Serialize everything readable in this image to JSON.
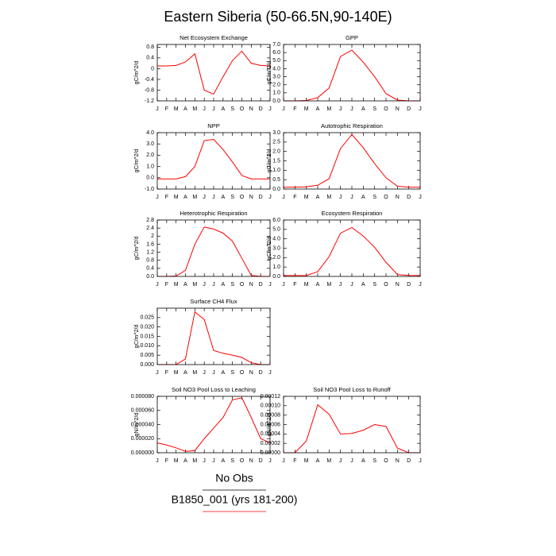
{
  "title": "Eastern Siberia (50-66.5N,90-140E)",
  "legend": [
    {
      "name": "No Obs",
      "color": "#000000"
    },
    {
      "name": "B1850_001 (yrs 181-200)",
      "color": "#ff0000"
    }
  ],
  "chart_data": [
    {
      "type": "line",
      "title": "Net Ecosystem Exchange",
      "ylabel": "gC/m^2/d",
      "color": "#ff0000",
      "categories": [
        "J",
        "F",
        "M",
        "A",
        "M",
        "J",
        "J",
        "A",
        "S",
        "O",
        "N",
        "D",
        "J"
      ],
      "values": [
        0.1,
        0.1,
        0.12,
        0.25,
        0.55,
        -0.8,
        -0.95,
        -0.3,
        0.3,
        0.65,
        0.2,
        0.12,
        0.1
      ],
      "ylim": [
        -1.2,
        0.9
      ],
      "yticks": [
        -1.2,
        -0.8,
        -0.4,
        0,
        0.4,
        0.8
      ]
    },
    {
      "type": "line",
      "title": "GPP",
      "ylabel": "gC/m^2/d",
      "color": "#ff0000",
      "categories": [
        "J",
        "F",
        "M",
        "A",
        "M",
        "J",
        "J",
        "A",
        "S",
        "O",
        "N",
        "D",
        "J"
      ],
      "values": [
        0,
        0,
        0.05,
        0.4,
        1.6,
        5.5,
        6.3,
        4.8,
        3.0,
        0.9,
        0.1,
        0,
        0
      ],
      "ylim": [
        0,
        7
      ],
      "yticks": [
        {
          "value": 0,
          "label": "0.0"
        },
        {
          "value": 1,
          "label": "1.0"
        },
        {
          "value": 2,
          "label": "2.0"
        },
        {
          "value": 3,
          "label": "3.0"
        },
        {
          "value": 4,
          "label": "4.0"
        },
        {
          "value": 5,
          "label": "5.0"
        },
        {
          "value": 6,
          "label": "6.0"
        },
        {
          "value": 7,
          "label": "7.0"
        }
      ]
    },
    {
      "type": "line",
      "title": "NPP",
      "ylabel": "gC/m^2/d",
      "color": "#ff0000",
      "categories": [
        "J",
        "F",
        "M",
        "A",
        "M",
        "J",
        "J",
        "A",
        "S",
        "O",
        "N",
        "D",
        "J"
      ],
      "values": [
        -0.1,
        -0.1,
        -0.1,
        0.1,
        1.0,
        3.3,
        3.4,
        2.5,
        1.4,
        0.2,
        -0.1,
        -0.1,
        -0.1
      ],
      "ylim": [
        -1,
        4
      ],
      "yticks": [
        {
          "value": -1,
          "label": "-1.0"
        },
        {
          "value": 0,
          "label": "0.0"
        },
        {
          "value": 1,
          "label": "1.0"
        },
        {
          "value": 2,
          "label": "2.0"
        },
        {
          "value": 3,
          "label": "3.0"
        },
        {
          "value": 4,
          "label": "4.0"
        }
      ]
    },
    {
      "type": "line",
      "title": "Autotrophic Respiration",
      "ylabel": "gC/m^2/d",
      "color": "#ff0000",
      "categories": [
        "J",
        "F",
        "M",
        "A",
        "M",
        "J",
        "J",
        "A",
        "S",
        "O",
        "N",
        "D",
        "J"
      ],
      "values": [
        0.1,
        0.1,
        0.12,
        0.2,
        0.55,
        2.15,
        2.9,
        2.2,
        1.35,
        0.6,
        0.15,
        0.1,
        0.1
      ],
      "ylim": [
        0,
        3
      ],
      "yticks": [
        {
          "value": 0,
          "label": "0.0"
        },
        {
          "value": 0.5,
          "label": "0.5"
        },
        {
          "value": 1,
          "label": "1.0"
        },
        {
          "value": 1.5,
          "label": "1.5"
        },
        {
          "value": 2,
          "label": "2.0"
        },
        {
          "value": 2.5,
          "label": "2.5"
        },
        {
          "value": 3,
          "label": "3.0"
        }
      ]
    },
    {
      "type": "line",
      "title": "Heterotrophic Respiration",
      "ylabel": "gC/m^2/d",
      "color": "#ff0000",
      "categories": [
        "J",
        "F",
        "M",
        "A",
        "M",
        "J",
        "J",
        "A",
        "S",
        "O",
        "N",
        "D",
        "J"
      ],
      "values": [
        0,
        0,
        0.02,
        0.3,
        1.6,
        2.45,
        2.35,
        2.15,
        1.75,
        0.9,
        0.05,
        0,
        0
      ],
      "ylim": [
        0,
        2.8
      ],
      "yticks": [
        {
          "value": 0,
          "label": "0.0"
        },
        0.4,
        0.8,
        1.2,
        1.6,
        2,
        2.4,
        2.8
      ]
    },
    {
      "type": "line",
      "title": "Ecosystem Respiration",
      "ylabel": "gC/m^2/d",
      "color": "#ff0000",
      "categories": [
        "J",
        "F",
        "M",
        "A",
        "M",
        "J",
        "J",
        "A",
        "S",
        "O",
        "N",
        "D",
        "J"
      ],
      "values": [
        0.1,
        0.1,
        0.1,
        0.5,
        2.1,
        4.6,
        5.2,
        4.3,
        3.1,
        1.5,
        0.2,
        0.1,
        0.1
      ],
      "ylim": [
        0,
        6
      ],
      "yticks": [
        {
          "value": 0,
          "label": "0.0"
        },
        {
          "value": 1,
          "label": "1.0"
        },
        {
          "value": 2,
          "label": "2.0"
        },
        {
          "value": 3,
          "label": "3.0"
        },
        {
          "value": 4,
          "label": "4.0"
        },
        {
          "value": 5,
          "label": "5.0"
        },
        {
          "value": 6,
          "label": "6.0"
        }
      ]
    },
    {
      "type": "line",
      "title": "Surface CH4 Flux",
      "ylabel": "gC/m^2/d",
      "color": "#ff0000",
      "categories": [
        "J",
        "F",
        "M",
        "A",
        "M",
        "J",
        "J",
        "A",
        "S",
        "O",
        "N",
        "D",
        "J"
      ],
      "values": [
        0,
        0,
        0,
        0.003,
        0.028,
        0.024,
        0.0075,
        0.006,
        0.005,
        0.0038,
        0.001,
        0,
        0
      ],
      "ylim": [
        0,
        0.03
      ],
      "yticks": [
        {
          "value": 0,
          "label": "0.000"
        },
        0.005,
        {
          "value": 0.01,
          "label": "0.010"
        },
        0.015,
        {
          "value": 0.02,
          "label": "0.020"
        },
        0.025
      ]
    },
    {
      "type": "line",
      "title": "Soil NO3 Pool Loss to Leaching",
      "ylabel": "gN/m^2/d",
      "color": "#ff0000",
      "categories": [
        "J",
        "F",
        "M",
        "A",
        "M",
        "J",
        "J",
        "A",
        "S",
        "O",
        "N",
        "D",
        "J"
      ],
      "values": [
        1.4e-05,
        1.1e-05,
        7e-06,
        2e-06,
        3e-06,
        2e-05,
        3.5e-05,
        5e-05,
        7.5e-05,
        7.8e-05,
        5e-05,
        2e-05,
        1.4e-05
      ],
      "ylim": [
        0,
        8e-05
      ],
      "yticks": [
        {
          "value": 0,
          "label": "0.000000"
        },
        {
          "value": 2e-05,
          "label": "0.000020"
        },
        {
          "value": 4e-05,
          "label": "0.000040"
        },
        {
          "value": 6e-05,
          "label": "0.000060"
        },
        {
          "value": 8e-05,
          "label": "0.000080"
        }
      ]
    },
    {
      "type": "line",
      "title": "Soil NO3 Pool Loss to Runoff",
      "ylabel": "gN/m^2/d",
      "color": "#ff0000",
      "categories": [
        "J",
        "F",
        "M",
        "A",
        "M",
        "J",
        "J",
        "A",
        "S",
        "O",
        "N",
        "D",
        "J"
      ],
      "values": [
        0,
        0,
        2.5e-05,
        0.000102,
        8.2e-05,
        4e-05,
        4.1e-05,
        4.8e-05,
        6e-05,
        5.6e-05,
        1e-05,
        0,
        0
      ],
      "ylim": [
        0,
        0.00012
      ],
      "yticks": [
        {
          "value": 0,
          "label": "0.00000"
        },
        {
          "value": 2e-05,
          "label": "0.00002"
        },
        {
          "value": 4e-05,
          "label": "0.00004"
        },
        {
          "value": 6e-05,
          "label": "0.00006"
        },
        {
          "value": 8e-05,
          "label": "0.00008"
        },
        {
          "value": 0.0001,
          "label": "0.00010"
        },
        {
          "value": 0.00012,
          "label": "0.00012"
        }
      ]
    }
  ]
}
